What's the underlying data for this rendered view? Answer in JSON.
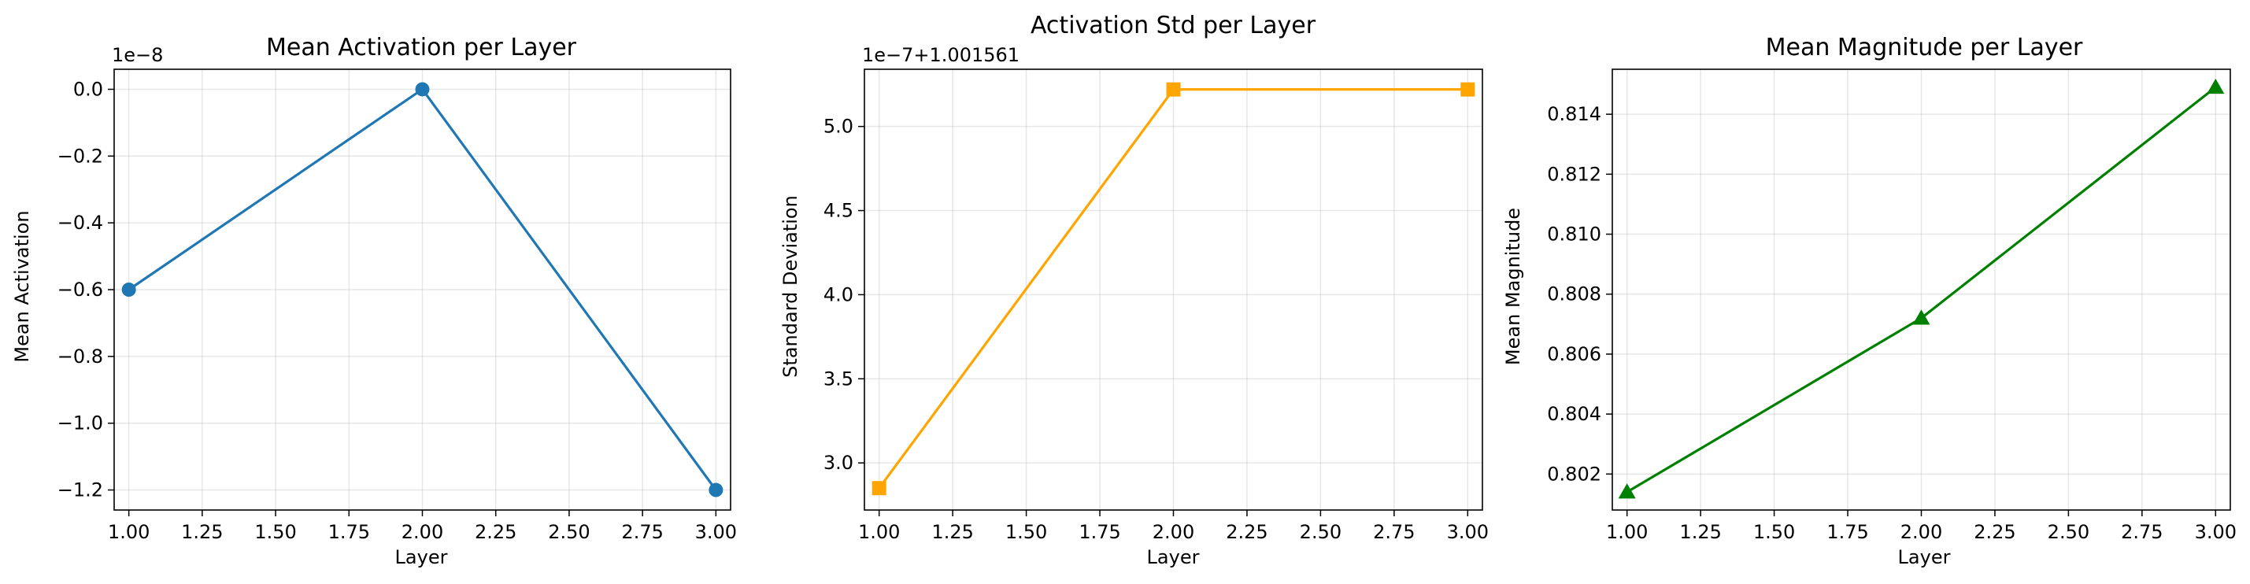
{
  "chart_data": [
    {
      "type": "line",
      "title": "Mean Activation per Layer",
      "xlabel": "Layer",
      "ylabel": "Mean Activation",
      "offset_text": "1e−8",
      "x": [
        1.0,
        2.0,
        3.0
      ],
      "series": [
        {
          "values": [
            -6e-09,
            0.0,
            -1.2e-08
          ],
          "marker": "circle",
          "color": "#1f77b4"
        }
      ],
      "xlim": [
        0.95,
        3.05
      ],
      "ylim": [
        -1.26e-08,
        6e-10
      ],
      "xticks": [
        "1.00",
        "1.25",
        "1.50",
        "1.75",
        "2.00",
        "2.25",
        "2.50",
        "2.75",
        "3.00"
      ],
      "yticks": [
        "0.0",
        "−0.2",
        "−0.4",
        "−0.6",
        "−0.8",
        "−1.0",
        "−1.2"
      ],
      "grid": true
    },
    {
      "type": "line",
      "title": "Activation Std per Layer",
      "xlabel": "Layer",
      "ylabel": "Standard Deviation",
      "offset_text": "1e−7+1.001561",
      "x": [
        1.0,
        2.0,
        3.0
      ],
      "series": [
        {
          "values": [
            1.001561285,
            1.001561522,
            1.001561522
          ],
          "marker": "square",
          "color": "#ffa500"
        }
      ],
      "xlim": [
        0.95,
        3.05
      ],
      "ylim": [
        1.001561272,
        1.001561534
      ],
      "xticks": [
        "1.00",
        "1.25",
        "1.50",
        "1.75",
        "2.00",
        "2.25",
        "2.50",
        "2.75",
        "3.00"
      ],
      "yticks": [
        "3.0",
        "3.5",
        "4.0",
        "4.5",
        "5.0"
      ],
      "grid": true
    },
    {
      "type": "line",
      "title": "Mean Magnitude per Layer",
      "xlabel": "Layer",
      "ylabel": "Mean Magnitude",
      "x": [
        1.0,
        2.0,
        3.0
      ],
      "series": [
        {
          "values": [
            0.8014,
            0.8072,
            0.8149
          ],
          "marker": "triangle",
          "color": "#008000"
        }
      ],
      "xlim": [
        0.95,
        3.05
      ],
      "ylim": [
        0.8008,
        0.8155
      ],
      "xticks": [
        "1.00",
        "1.25",
        "1.50",
        "1.75",
        "2.00",
        "2.25",
        "2.50",
        "2.75",
        "3.00"
      ],
      "yticks": [
        "0.802",
        "0.804",
        "0.806",
        "0.808",
        "0.810",
        "0.812",
        "0.814"
      ],
      "grid": true
    }
  ]
}
